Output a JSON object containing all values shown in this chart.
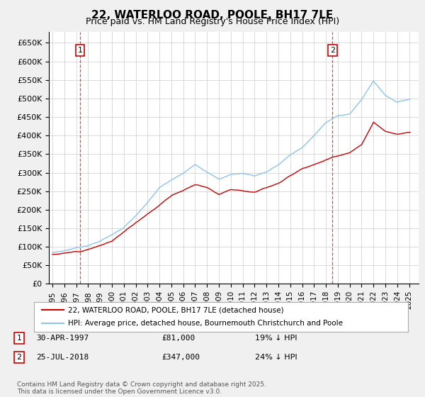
{
  "title": "22, WATERLOO ROAD, POOLE, BH17 7LE",
  "subtitle": "Price paid vs. HM Land Registry's House Price Index (HPI)",
  "ylim": [
    0,
    680000
  ],
  "yticks": [
    0,
    50000,
    100000,
    150000,
    200000,
    250000,
    300000,
    350000,
    400000,
    450000,
    500000,
    550000,
    600000,
    650000
  ],
  "hpi_color": "#8cc4f0",
  "price_color": "#cc0000",
  "marker1_year": 1997.33,
  "marker1_price": 81000,
  "marker1_label": "1",
  "marker1_date": "30-APR-1997",
  "marker1_amount": "£81,000",
  "marker1_hpi": "19% ↓ HPI",
  "marker2_year": 2018.56,
  "marker2_price": 347000,
  "marker2_label": "2",
  "marker2_date": "25-JUL-2018",
  "marker2_amount": "£347,000",
  "marker2_hpi": "24% ↓ HPI",
  "legend_line1": "22, WATERLOO ROAD, POOLE, BH17 7LE (detached house)",
  "legend_line2": "HPI: Average price, detached house, Bournemouth Christchurch and Poole",
  "footnote": "Contains HM Land Registry data © Crown copyright and database right 2025.\nThis data is licensed under the Open Government Licence v3.0.",
  "title_fontsize": 11,
  "subtitle_fontsize": 9,
  "background_color": "#f0f0f0",
  "plot_bg_color": "#ffffff",
  "grid_color": "#cccccc"
}
